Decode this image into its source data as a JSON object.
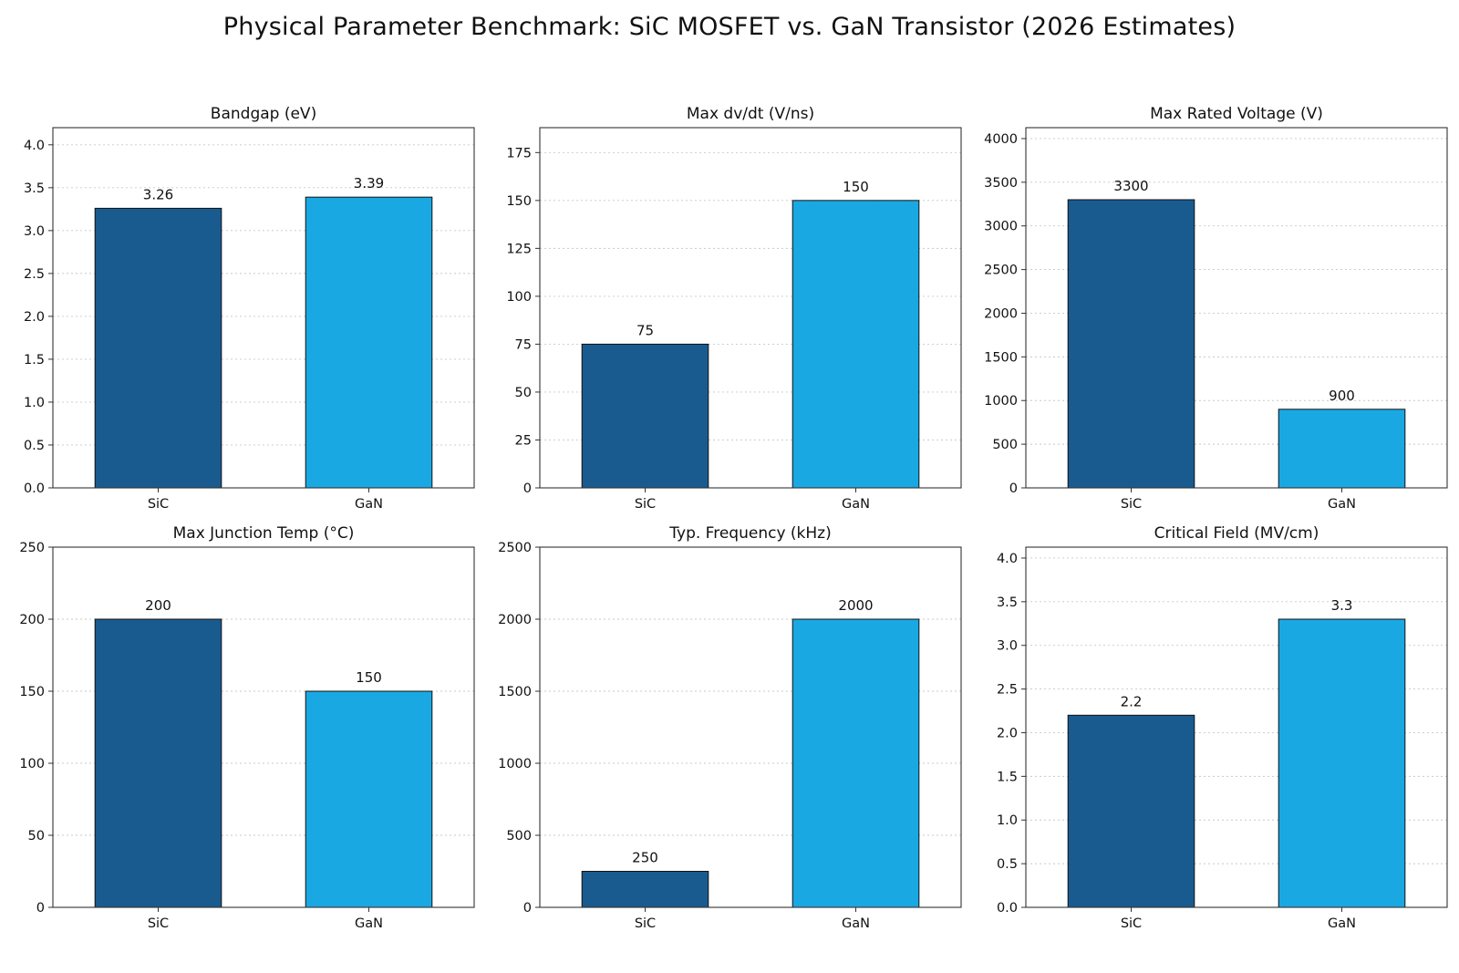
{
  "title": "Physical Parameter Benchmark: SiC MOSFET vs. GaN Transistor (2026 Estimates)",
  "colors": {
    "SiC": "#1a5b8f",
    "GaN": "#1aa8e3"
  },
  "chart_data": [
    {
      "type": "bar",
      "title": "Bandgap (eV)",
      "categories": [
        "SiC",
        "GaN"
      ],
      "values": [
        3.26,
        3.39
      ],
      "value_labels": [
        "3.26",
        "3.39"
      ],
      "ylim": [
        0,
        4.2
      ],
      "yticks": [
        0,
        0.5,
        1.0,
        1.5,
        2.0,
        2.5,
        3.0,
        3.5,
        4.0
      ],
      "ytick_labels": [
        "0.0",
        "0.5",
        "1.0",
        "1.5",
        "2.0",
        "2.5",
        "3.0",
        "3.5",
        "4.0"
      ],
      "grid": true
    },
    {
      "type": "bar",
      "title": "Max dv/dt (V/ns)",
      "categories": [
        "SiC",
        "GaN"
      ],
      "values": [
        75,
        150
      ],
      "value_labels": [
        "75",
        "150"
      ],
      "ylim": [
        0,
        188
      ],
      "yticks": [
        0,
        25,
        50,
        75,
        100,
        125,
        150,
        175
      ],
      "ytick_labels": [
        "0",
        "25",
        "50",
        "75",
        "100",
        "125",
        "150",
        "175"
      ],
      "grid": true
    },
    {
      "type": "bar",
      "title": "Max Rated Voltage (V)",
      "categories": [
        "SiC",
        "GaN"
      ],
      "values": [
        3300,
        900
      ],
      "value_labels": [
        "3300",
        "900"
      ],
      "ylim": [
        0,
        4125
      ],
      "yticks": [
        0,
        500,
        1000,
        1500,
        2000,
        2500,
        3000,
        3500,
        4000
      ],
      "ytick_labels": [
        "0",
        "500",
        "1000",
        "1500",
        "2000",
        "2500",
        "3000",
        "3500",
        "4000"
      ],
      "grid": true
    },
    {
      "type": "bar",
      "title": "Max Junction Temp (°C)",
      "categories": [
        "SiC",
        "GaN"
      ],
      "values": [
        200,
        150
      ],
      "value_labels": [
        "200",
        "150"
      ],
      "ylim": [
        0,
        250
      ],
      "yticks": [
        0,
        50,
        100,
        150,
        200,
        250
      ],
      "ytick_labels": [
        "0",
        "50",
        "100",
        "150",
        "200",
        "250"
      ],
      "grid": true
    },
    {
      "type": "bar",
      "title": "Typ. Frequency (kHz)",
      "categories": [
        "SiC",
        "GaN"
      ],
      "values": [
        250,
        2000
      ],
      "value_labels": [
        "250",
        "2000"
      ],
      "ylim": [
        0,
        2500
      ],
      "yticks": [
        0,
        500,
        1000,
        1500,
        2000,
        2500
      ],
      "ytick_labels": [
        "0",
        "500",
        "1000",
        "1500",
        "2000",
        "2500"
      ],
      "grid": true
    },
    {
      "type": "bar",
      "title": "Critical Field (MV/cm)",
      "categories": [
        "SiC",
        "GaN"
      ],
      "values": [
        2.2,
        3.3
      ],
      "value_labels": [
        "2.2",
        "3.3"
      ],
      "ylim": [
        0,
        4.125
      ],
      "yticks": [
        0,
        0.5,
        1.0,
        1.5,
        2.0,
        2.5,
        3.0,
        3.5,
        4.0
      ],
      "ytick_labels": [
        "0.0",
        "0.5",
        "1.0",
        "1.5",
        "2.0",
        "2.5",
        "3.0",
        "3.5",
        "4.0"
      ],
      "grid": true
    }
  ]
}
